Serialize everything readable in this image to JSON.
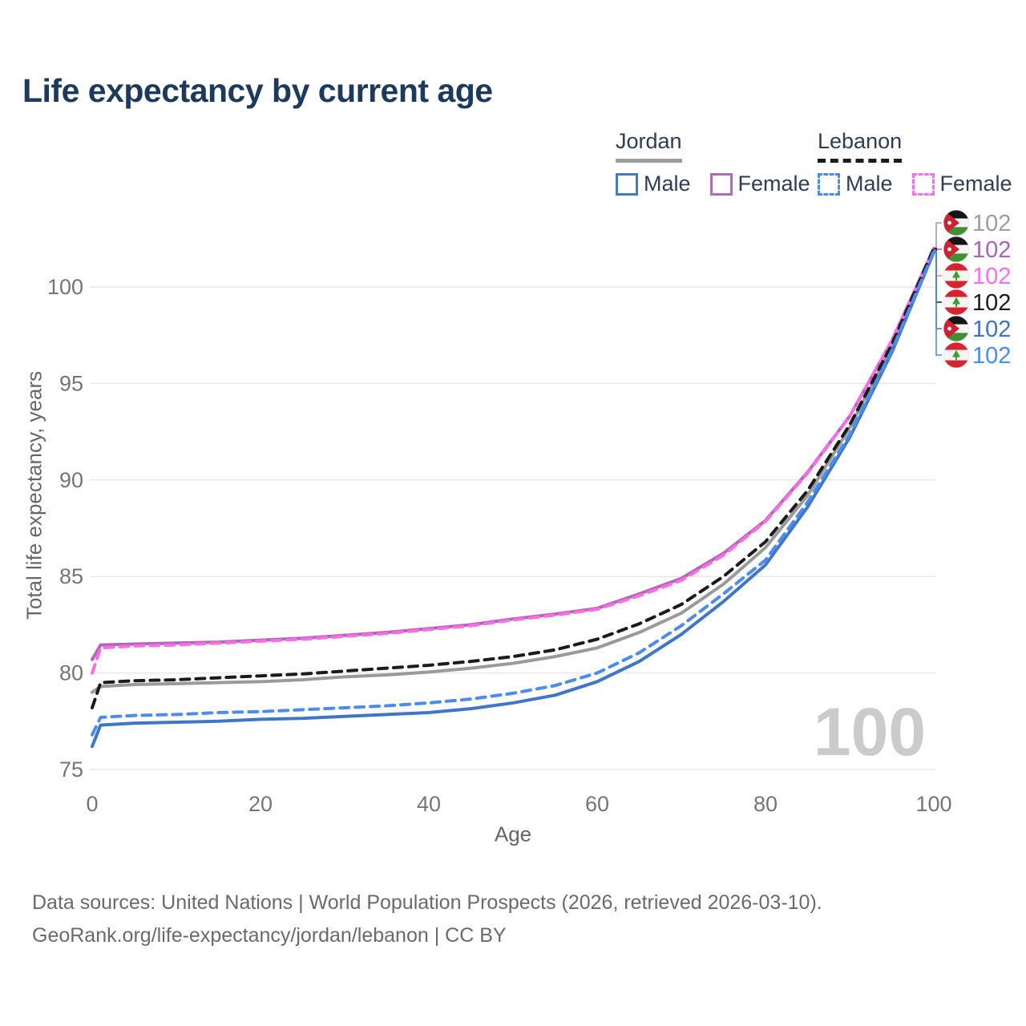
{
  "title": "Life expectancy by current age",
  "watermark": "100",
  "legend": {
    "groups": [
      {
        "country": "Jordan",
        "rule_style": "solid",
        "rule_color": "#9e9e9e",
        "items": [
          {
            "label": "Male",
            "style": "solid",
            "color": "#4779bf"
          },
          {
            "label": "Female",
            "style": "solid",
            "color": "#b16cb4"
          }
        ]
      },
      {
        "country": "Lebanon",
        "rule_style": "dashed",
        "rule_color": "#1b1b1b",
        "items": [
          {
            "label": "Male",
            "style": "dashed",
            "color": "#4b8bf2"
          },
          {
            "label": "Female",
            "style": "dashed",
            "color": "#fb71e5"
          }
        ]
      }
    ]
  },
  "footer": {
    "line1": "Data sources: United Nations | World Population Prospects (2026, retrieved 2026-03-10).",
    "line2": "GeoRank.org/life-expectancy/jordan/lebanon | CC BY"
  },
  "chart_data": {
    "type": "line",
    "title": "Life expectancy by current age",
    "xlabel": "Age",
    "ylabel": "Total life expectancy, years",
    "xlim": [
      0,
      100
    ],
    "ylim": [
      75,
      102.5
    ],
    "xticks": [
      0,
      20,
      40,
      60,
      80,
      100
    ],
    "yticks": [
      75,
      80,
      85,
      90,
      95,
      100
    ],
    "grid": "horizontal",
    "legend_position": "top-right",
    "x": [
      0,
      1,
      5,
      10,
      15,
      20,
      25,
      30,
      35,
      40,
      45,
      50,
      55,
      60,
      65,
      70,
      75,
      80,
      85,
      90,
      95,
      100
    ],
    "series": [
      {
        "id": "jordan-average",
        "name": "Jordan",
        "country": "Jordan",
        "line_style": "solid",
        "color": "#9a9a9a",
        "label_color": "#9e9e9e",
        "flag": "jordan",
        "end_label": "102",
        "values": [
          79.0,
          79.3,
          79.4,
          79.45,
          79.5,
          79.55,
          79.65,
          79.8,
          79.9,
          80.05,
          80.25,
          80.5,
          80.85,
          81.3,
          82.1,
          83.1,
          84.6,
          86.5,
          89.2,
          92.7,
          96.9,
          101.9
        ]
      },
      {
        "id": "jordan-female",
        "name": "Jordan Female",
        "country": "Jordan",
        "line_style": "solid",
        "color": "#b465b8",
        "label_color": "#a963b8",
        "flag": "jordan",
        "end_label": "102",
        "values": [
          80.7,
          81.45,
          81.5,
          81.55,
          81.6,
          81.7,
          81.8,
          81.95,
          82.1,
          82.3,
          82.5,
          82.8,
          83.05,
          83.35,
          84.1,
          84.9,
          86.2,
          87.9,
          90.4,
          93.3,
          97.2,
          102.0
        ]
      },
      {
        "id": "lebanon-female",
        "name": "Lebanon Female",
        "country": "Lebanon",
        "line_style": "dashed",
        "color": "#f96ee5",
        "label_color": "#fb6ee8",
        "flag": "lebanon",
        "end_label": "102",
        "values": [
          80.0,
          81.3,
          81.4,
          81.45,
          81.55,
          81.65,
          81.75,
          81.9,
          82.05,
          82.25,
          82.45,
          82.75,
          83.0,
          83.3,
          84.0,
          84.8,
          86.1,
          87.85,
          90.35,
          93.3,
          97.2,
          102.0
        ]
      },
      {
        "id": "lebanon-average",
        "name": "Lebanon",
        "country": "Lebanon",
        "line_style": "dashed",
        "color": "#1b1b1b",
        "label_color": "#1b1b1b",
        "flag": "lebanon",
        "end_label": "102",
        "values": [
          78.2,
          79.5,
          79.6,
          79.65,
          79.75,
          79.85,
          79.95,
          80.1,
          80.25,
          80.4,
          80.6,
          80.85,
          81.2,
          81.75,
          82.55,
          83.55,
          85.0,
          86.8,
          89.45,
          92.85,
          97.0,
          102.0
        ]
      },
      {
        "id": "jordan-male",
        "name": "Jordan Male",
        "country": "Jordan",
        "line_style": "solid",
        "color": "#3f76c5",
        "label_color": "#3d74c2",
        "flag": "jordan",
        "end_label": "102",
        "values": [
          76.2,
          77.3,
          77.4,
          77.45,
          77.5,
          77.6,
          77.65,
          77.75,
          77.85,
          77.95,
          78.15,
          78.45,
          78.85,
          79.55,
          80.6,
          82.0,
          83.7,
          85.6,
          88.6,
          92.2,
          96.6,
          101.8
        ]
      },
      {
        "id": "lebanon-male",
        "name": "Lebanon Male",
        "country": "Lebanon",
        "line_style": "dashed",
        "color": "#4b8bf2",
        "label_color": "#4b8bf2",
        "flag": "lebanon",
        "end_label": "102",
        "values": [
          76.8,
          77.7,
          77.8,
          77.85,
          77.95,
          78.0,
          78.1,
          78.2,
          78.3,
          78.45,
          78.65,
          78.95,
          79.35,
          80.0,
          81.05,
          82.45,
          84.1,
          85.85,
          88.85,
          92.35,
          96.7,
          101.85
        ]
      }
    ]
  }
}
